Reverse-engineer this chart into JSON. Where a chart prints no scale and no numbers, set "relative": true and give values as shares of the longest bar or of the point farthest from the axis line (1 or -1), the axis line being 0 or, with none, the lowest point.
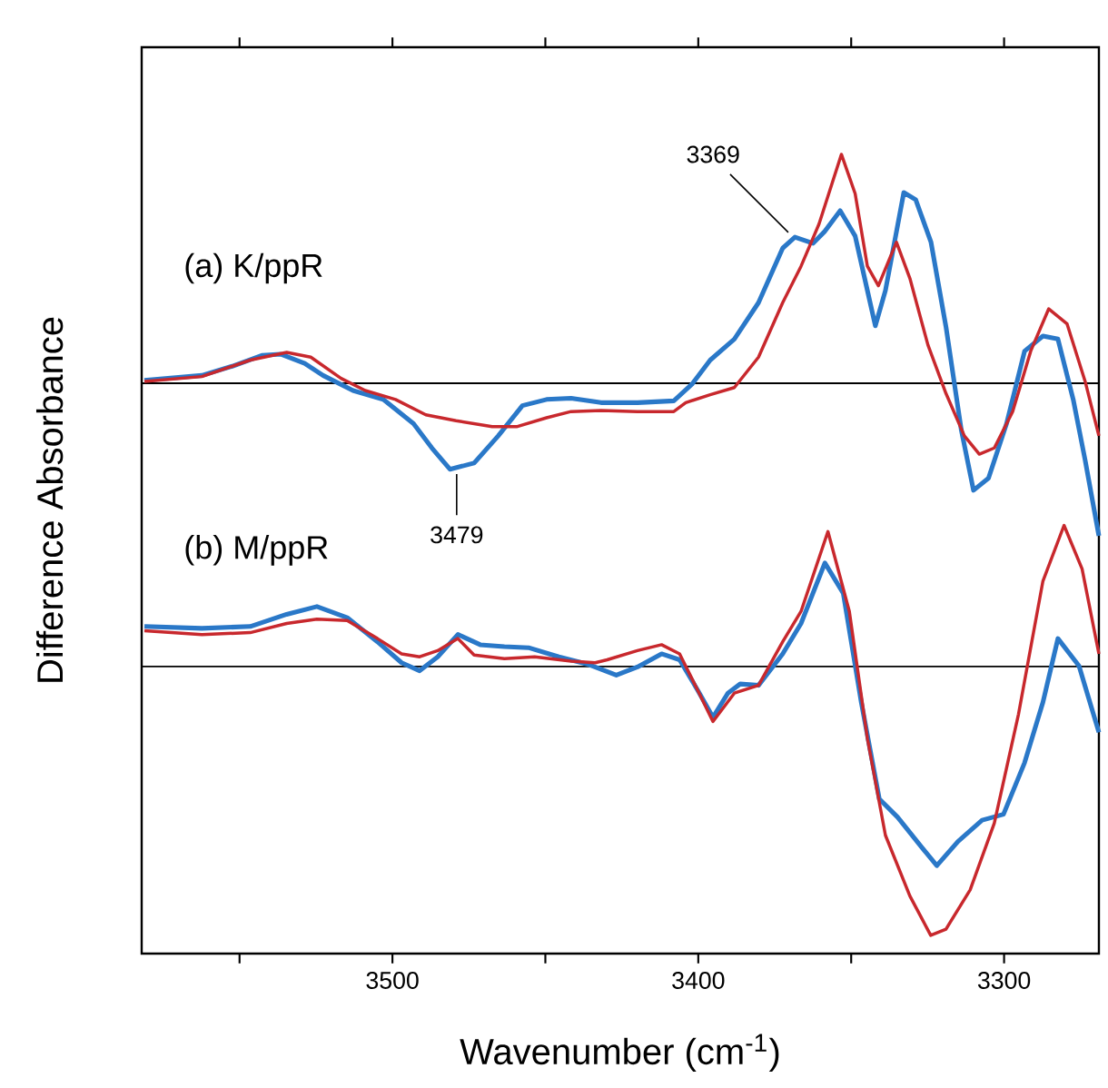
{
  "chart_data": [
    {
      "type": "line",
      "relative": true,
      "ylabel": "Difference Absorbance",
      "xlim": [
        3582,
        3269
      ],
      "tick_labels": false,
      "ref_lines": [
        {
          "axis": "y",
          "value": 0,
          "color": "#000000"
        }
      ],
      "annotations": [
        "(a) K/ppR",
        {
          "text": "3369",
          "x": 3369,
          "y": 0.638
        },
        {
          "text": "3479",
          "x": 3479,
          "y": -0.376
        }
      ],
      "series": [
        {
          "color": "#2a78c8",
          "x": [
            3581.1,
            3562.3,
            3552.4,
            3542.5,
            3536.6,
            3528.7,
            3522.7,
            3512.9,
            3503.0,
            3493.1,
            3487.1,
            3481.2,
            3473.3,
            3465.4,
            3457.5,
            3449.6,
            3441.6,
            3431.8,
            3419.9,
            3408.0,
            3402.1,
            3396.1,
            3388.2,
            3380.3,
            3372.4,
            3368.4,
            3362.5,
            3358.6,
            3353.6,
            3348.7,
            3344.7,
            3342.1,
            3338.8,
            3332.8,
            3328.9,
            3323.9,
            3319.0,
            3314.0,
            3310.0,
            3305.1,
            3299.2,
            3293.3,
            3287.3,
            3282.4,
            3277.4,
            3273.5,
            3269
          ],
          "values": [
            0.013,
            0.034,
            0.074,
            0.122,
            0.127,
            0.087,
            0.034,
            -0.032,
            -0.071,
            -0.177,
            -0.283,
            -0.376,
            -0.349,
            -0.23,
            -0.098,
            -0.071,
            -0.066,
            -0.085,
            -0.085,
            -0.077,
            -0.005,
            0.101,
            0.193,
            0.352,
            0.59,
            0.638,
            0.611,
            0.664,
            0.754,
            0.643,
            0.405,
            0.251,
            0.405,
            0.833,
            0.802,
            0.616,
            0.246,
            -0.204,
            -0.468,
            -0.415,
            -0.177,
            0.14,
            0.206,
            0.193,
            -0.071,
            -0.336,
            -0.667
          ]
        },
        {
          "color": "#c8282d",
          "x": [
            3581.1,
            3562.3,
            3546.5,
            3534.6,
            3526.7,
            3516.8,
            3508.9,
            3499.0,
            3489.1,
            3479.2,
            3467.4,
            3459.4,
            3449.6,
            3441.6,
            3431.8,
            3419.9,
            3408.0,
            3404.1,
            3396.1,
            3388.2,
            3380.3,
            3372.4,
            3366.4,
            3360.5,
            3353.2,
            3348.7,
            3344.7,
            3341.1,
            3335.2,
            3330.8,
            3324.9,
            3319.0,
            3313.0,
            3308.1,
            3303.2,
            3297.2,
            3291.3,
            3285.4,
            3279.4,
            3273.5,
            3269
          ],
          "values": [
            0.008,
            0.029,
            0.101,
            0.135,
            0.114,
            0.021,
            -0.032,
            -0.071,
            -0.138,
            -0.164,
            -0.19,
            -0.19,
            -0.151,
            -0.124,
            -0.119,
            -0.124,
            -0.124,
            -0.085,
            -0.05,
            -0.019,
            0.114,
            0.352,
            0.511,
            0.696,
            1.0,
            0.828,
            0.511,
            0.426,
            0.616,
            0.458,
            0.167,
            -0.045,
            -0.23,
            -0.31,
            -0.283,
            -0.124,
            0.14,
            0.325,
            0.259,
            0.008,
            -0.23
          ]
        }
      ]
    },
    {
      "type": "line",
      "relative": true,
      "xlabel": "Wavenumber (cm$^{-1}$)",
      "xlim": [
        3582,
        3269
      ],
      "tick_labels": "x",
      "xticks": [
        {
          "value": 3550,
          "label": null
        },
        3500,
        {
          "value": 3450,
          "label": null
        },
        3400,
        {
          "value": 3350,
          "label": null
        },
        3300
      ],
      "ref_lines": [
        {
          "axis": "y",
          "value": 0,
          "color": "#000000"
        }
      ],
      "annotations": [
        "(b) M/ppR"
      ],
      "series": [
        {
          "color": "#2a78c8",
          "x": [
            3581.1,
            3562.3,
            3546.5,
            3534.6,
            3524.7,
            3514.8,
            3504.9,
            3497.0,
            3491.1,
            3485.2,
            3478.6,
            3471.3,
            3463.4,
            3455.5,
            3445.6,
            3435.7,
            3426.8,
            3419.9,
            3412.0,
            3406.1,
            3400.2,
            3395.2,
            3390.3,
            3386.3,
            3380.3,
            3372.4,
            3366.4,
            3358.6,
            3352.6,
            3346.7,
            3340.8,
            3334.8,
            3326.9,
            3322.0,
            3315.1,
            3307.2,
            3300.2,
            3293.3,
            3287.3,
            3282.4,
            3275.5,
            3269
          ],
          "values": [
            0.149,
            0.142,
            0.149,
            0.194,
            0.223,
            0.182,
            0.092,
            0.014,
            -0.016,
            0.036,
            0.119,
            0.081,
            0.074,
            0.07,
            0.036,
            0.007,
            -0.032,
            -0.002,
            0.047,
            0.025,
            -0.088,
            -0.189,
            -0.099,
            -0.065,
            -0.07,
            0.047,
            0.16,
            0.385,
            0.273,
            -0.133,
            -0.493,
            -0.561,
            -0.673,
            -0.741,
            -0.651,
            -0.572,
            -0.55,
            -0.358,
            -0.133,
            0.104,
            0.002,
            -0.245
          ]
        },
        {
          "color": "#c8282d",
          "x": [
            3581.1,
            3562.3,
            3546.5,
            3534.6,
            3524.7,
            3514.8,
            3504.9,
            3497.0,
            3491.1,
            3485.2,
            3478.6,
            3473.3,
            3463.4,
            3453.5,
            3441.6,
            3433.7,
            3429.8,
            3419.9,
            3412.0,
            3406.1,
            3400.2,
            3395.2,
            3388.2,
            3380.3,
            3372.4,
            3366.4,
            3357.6,
            3350.6,
            3344.7,
            3338.8,
            3330.8,
            3324.0,
            3319.0,
            3311.1,
            3303.2,
            3295.3,
            3287.3,
            3280.4,
            3274.5,
            3269
          ],
          "values": [
            0.133,
            0.119,
            0.126,
            0.16,
            0.176,
            0.171,
            0.104,
            0.047,
            0.036,
            0.059,
            0.104,
            0.043,
            0.029,
            0.036,
            0.02,
            0.014,
            0.025,
            0.059,
            0.081,
            0.047,
            -0.088,
            -0.205,
            -0.099,
            -0.07,
            0.092,
            0.205,
            0.502,
            0.205,
            -0.268,
            -0.628,
            -0.854,
            -1.0,
            -0.977,
            -0.831,
            -0.583,
            -0.178,
            0.318,
            0.525,
            0.363,
            0.047
          ]
        }
      ]
    }
  ]
}
